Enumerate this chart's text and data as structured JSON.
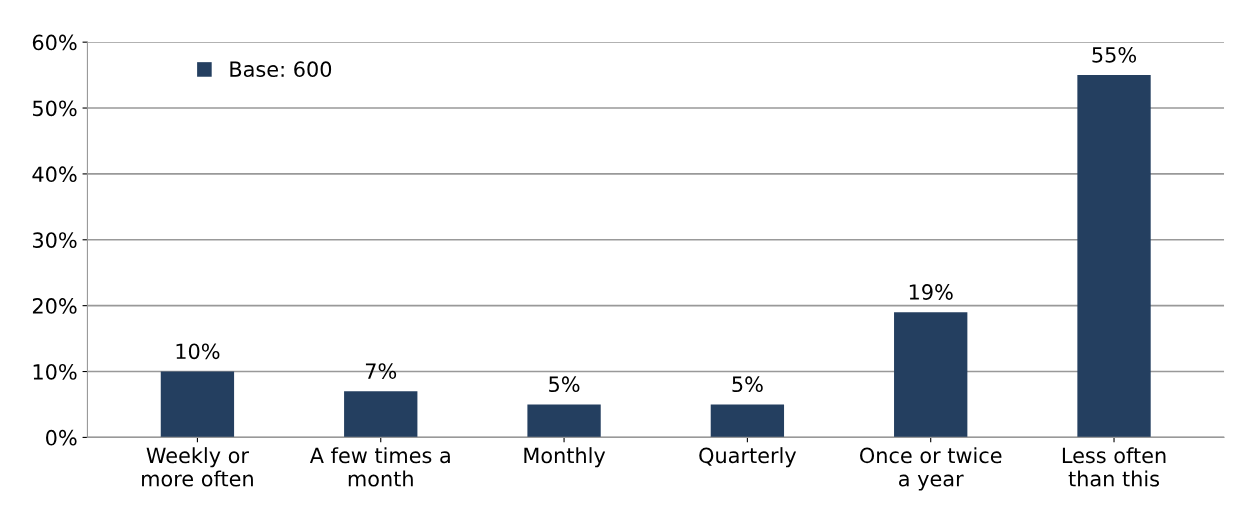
{
  "chart_data": {
    "type": "bar",
    "categories": [
      "Weekly or\nmore often",
      "A few times a\nmonth",
      "Monthly",
      "Quarterly",
      "Once or twice\na year",
      "Less often\nthan this"
    ],
    "series": [
      {
        "name": "Base: 600",
        "color": "#243f60",
        "values": [
          10,
          7,
          5,
          5,
          19,
          55
        ],
        "value_labels": [
          "10%",
          "7%",
          "5%",
          "5%",
          "19%",
          "55%"
        ]
      }
    ],
    "ylim": [
      0,
      60
    ],
    "yticks": [
      {
        "value": 0,
        "label": "0%"
      },
      {
        "value": 10,
        "label": "10%"
      },
      {
        "value": 20,
        "label": "20%"
      },
      {
        "value": 30,
        "label": "30%"
      },
      {
        "value": 40,
        "label": "40%"
      },
      {
        "value": 50,
        "label": "50%"
      },
      {
        "value": 60,
        "label": "60%"
      }
    ],
    "grid": "y",
    "legend": "top left"
  }
}
